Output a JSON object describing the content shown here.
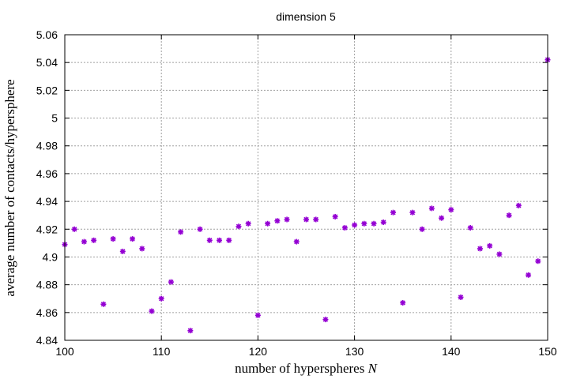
{
  "chart_data": {
    "type": "scatter",
    "title": "dimension 5",
    "xlabel": "number of hyperspheres",
    "xlabel_var": "N",
    "ylabel": "average number of contacts/hypersphere",
    "xlim": [
      100,
      150
    ],
    "ylim": [
      4.84,
      5.06
    ],
    "xticks": [
      "100",
      "110",
      "120",
      "130",
      "140",
      "150"
    ],
    "yticks": [
      "4.84",
      "4.86",
      "4.88",
      "4.9",
      "4.92",
      "4.94",
      "4.96",
      "4.98",
      "5",
      "5.02",
      "5.04",
      "5.06"
    ],
    "grid": true,
    "marker_color": "#9400d3",
    "x": [
      100,
      101,
      102,
      103,
      104,
      105,
      106,
      107,
      108,
      109,
      110,
      111,
      112,
      113,
      114,
      115,
      116,
      117,
      118,
      119,
      120,
      121,
      122,
      123,
      124,
      125,
      126,
      127,
      128,
      129,
      130,
      131,
      132,
      133,
      134,
      135,
      136,
      137,
      138,
      139,
      140,
      141,
      142,
      143,
      144,
      145,
      146,
      147,
      148,
      149,
      150
    ],
    "y": [
      4.909,
      4.92,
      4.911,
      4.912,
      4.866,
      4.913,
      4.904,
      4.913,
      4.906,
      4.861,
      4.87,
      4.882,
      4.918,
      4.847,
      4.92,
      4.912,
      4.912,
      4.912,
      4.922,
      4.924,
      4.858,
      4.924,
      4.926,
      4.927,
      4.911,
      4.927,
      4.927,
      4.855,
      4.929,
      4.921,
      4.923,
      4.924,
      4.924,
      4.925,
      4.932,
      4.867,
      4.932,
      4.92,
      4.935,
      4.928,
      4.934,
      4.871,
      4.921,
      4.906,
      4.908,
      4.902,
      4.93,
      4.937,
      4.887,
      4.897,
      5.042
    ]
  }
}
